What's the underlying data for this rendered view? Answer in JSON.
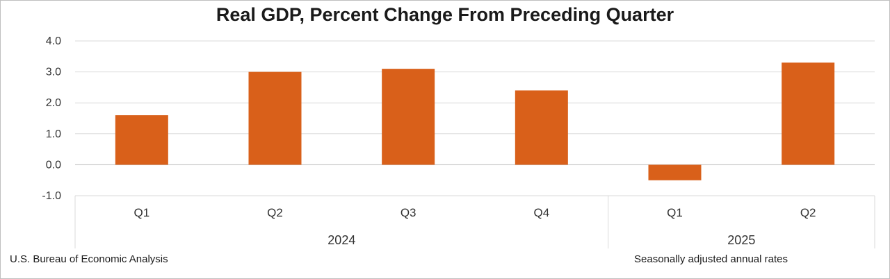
{
  "chart_data": {
    "type": "bar",
    "title": "Real GDP, Percent Change From Preceding Quarter",
    "categories": [
      "Q1",
      "Q2",
      "Q3",
      "Q4",
      "Q1",
      "Q2"
    ],
    "groups": [
      {
        "label": "2024",
        "count": 4
      },
      {
        "label": "2025",
        "count": 2
      }
    ],
    "values": [
      1.6,
      3.0,
      3.1,
      2.4,
      -0.5,
      3.3
    ],
    "ylim": [
      -1.0,
      4.0
    ],
    "yticks": [
      "-1.0",
      "0.0",
      "1.0",
      "2.0",
      "3.0",
      "4.0"
    ],
    "grid": true,
    "bar_color": "#d9601a",
    "source": "U.S. Bureau of Economic Analysis",
    "note": "Seasonally adjusted annual rates"
  }
}
